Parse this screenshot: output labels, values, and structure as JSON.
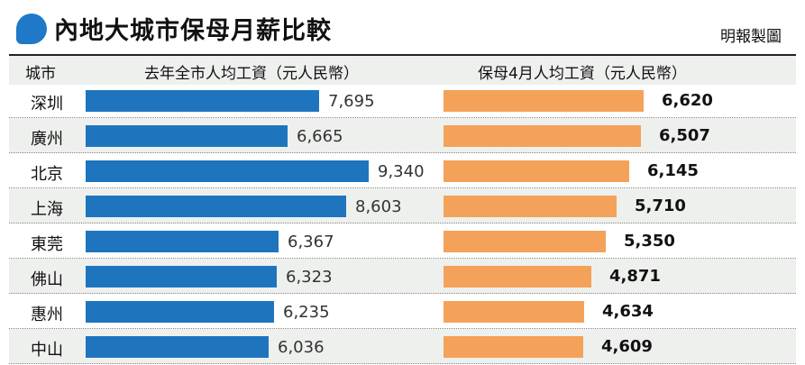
{
  "header": {
    "title": "內地大城市保母月薪比較",
    "credit": "明報製圖"
  },
  "columns": {
    "city": "城市",
    "avg_wage": "去年全市人均工資（元人民幣）",
    "nanny_wage": "保母4月人均工資（元人民幣）"
  },
  "chart_data": {
    "type": "bar",
    "title": "內地大城市保母月薪比較",
    "categories": [
      "深圳",
      "廣州",
      "北京",
      "上海",
      "東莞",
      "佛山",
      "惠州",
      "中山"
    ],
    "series": [
      {
        "name": "去年全市人均工資（元人民幣）",
        "color": "#1f75bd",
        "values": [
          7695,
          6665,
          9340,
          8603,
          6367,
          6323,
          6235,
          6036
        ],
        "labels": [
          "7,695",
          "6,665",
          "9,340",
          "8,603",
          "6,367",
          "6,323",
          "6,235",
          "6,036"
        ]
      },
      {
        "name": "保母4月人均工資（元人民幣）",
        "color": "#f4a259",
        "values": [
          6620,
          6507,
          6145,
          5710,
          5350,
          4871,
          4634,
          4609
        ],
        "labels": [
          "6,620",
          "6,507",
          "6,145",
          "5,710",
          "5,350",
          "4,871",
          "4,634",
          "4,609"
        ]
      }
    ]
  }
}
